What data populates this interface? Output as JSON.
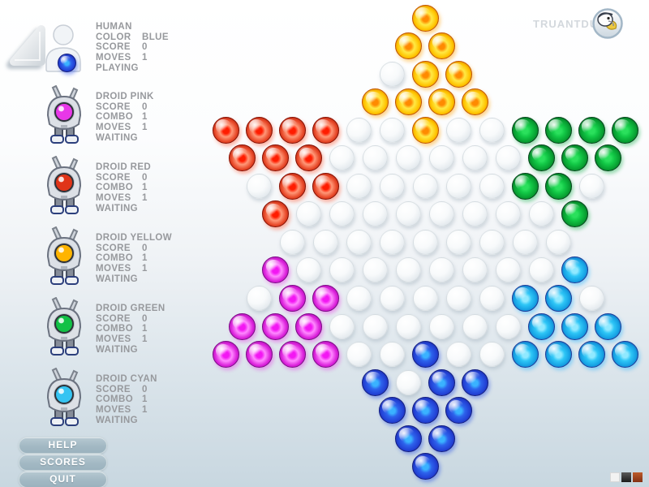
{
  "brand": {
    "name": "TRUANTDUCK",
    "logo_icon": "duck-logo",
    "text_color": "#d3d8dd"
  },
  "menu": [
    "HELP",
    "SCORES",
    "QUIT"
  ],
  "players": [
    {
      "id": "human",
      "name": "HUMAN",
      "icon": "person-icon",
      "color": "#2b62e8",
      "stats": [
        [
          "COLOR",
          "BLUE"
        ],
        [
          "SCORE",
          "0"
        ],
        [
          "MOVES",
          "1"
        ]
      ],
      "status": "PLAYING"
    },
    {
      "id": "droid-pink",
      "name": "DROID PINK",
      "icon": "robot-icon",
      "color": "#e838e8",
      "stats": [
        [
          "SCORE",
          "0"
        ],
        [
          "COMBO",
          "1"
        ],
        [
          "MOVES",
          "1"
        ]
      ],
      "status": "WAITING"
    },
    {
      "id": "droid-red",
      "name": "DROID RED",
      "icon": "robot-icon",
      "color": "#e03418",
      "stats": [
        [
          "SCORE",
          "0"
        ],
        [
          "COMBO",
          "1"
        ],
        [
          "MOVES",
          "1"
        ]
      ],
      "status": "WAITING"
    },
    {
      "id": "droid-yellow",
      "name": "DROID YELLOW",
      "icon": "robot-icon",
      "color": "#ffb400",
      "stats": [
        [
          "SCORE",
          "0"
        ],
        [
          "COMBO",
          "1"
        ],
        [
          "MOVES",
          "1"
        ]
      ],
      "status": "WAITING"
    },
    {
      "id": "droid-green",
      "name": "DROID GREEN",
      "icon": "robot-icon",
      "color": "#12c146",
      "stats": [
        [
          "SCORE",
          "0"
        ],
        [
          "COMBO",
          "1"
        ],
        [
          "MOVES",
          "1"
        ]
      ],
      "status": "WAITING"
    },
    {
      "id": "droid-cyan",
      "name": "DROID CYAN",
      "icon": "robot-icon",
      "color": "#36c4f2",
      "stats": [
        [
          "SCORE",
          "0"
        ],
        [
          "COMBO",
          "1"
        ],
        [
          "MOVES",
          "1"
        ]
      ],
      "status": "WAITING"
    }
  ],
  "board": {
    "game": "chinese-checkers",
    "rows": [
      "Y",
      "YY",
      ".YY",
      "YYYY",
      "RRRR..Y..GGGG",
      "RRR......GGG",
      ".RR.....GG.",
      "R........G",
      ".........",
      "M........C",
      ".MM.....CC.",
      "MMM......CCC",
      "MMMM..B..CCCC",
      "B.BB",
      "BBB",
      "BB",
      "B"
    ],
    "legend": {
      "Y": "yellow",
      "R": "red",
      "G": "green",
      "M": "magenta",
      "C": "cyan",
      "B": "blue",
      ".": "empty"
    },
    "colors": {
      "Y": {
        "center": "#ff8a00",
        "mid": "#ffe945",
        "rim": "#ffc400",
        "dark": "#c25400",
        "glow": "rgba(255,160,0,.45)"
      },
      "R": {
        "center": "#ff1c00",
        "mid": "#ff9878",
        "rim": "#e84828",
        "dark": "#860e00",
        "glow": "rgba(255,70,30,.4)"
      },
      "G": {
        "center": "#2ae05c",
        "mid": "#12c846",
        "rim": "#08a032",
        "dark": "#05441b",
        "glow": "rgba(0,170,60,.4)"
      },
      "M": {
        "center": "#f316f3",
        "mid": "#ff8aff",
        "rim": "#dc22dc",
        "dark": "#7c0a86",
        "glow": "rgba(230,50,230,.4)"
      },
      "C": {
        "center": "#90e9ff",
        "mid": "#2ec6f6",
        "rim": "#16a2e4",
        "dark": "#1b3a98",
        "glow": "rgba(40,180,255,.45)"
      },
      "B": {
        "center": "#3ab2ff",
        "mid": "#2d63ec",
        "rim": "#2342d6",
        "dark": "#131d80",
        "glow": "rgba(40,80,230,.45)"
      }
    }
  },
  "theme_swatches": [
    {
      "name": "light",
      "color": "#f2f2f2"
    },
    {
      "name": "dark",
      "color": "#2a2a2a"
    },
    {
      "name": "orange",
      "color": "#a64a22"
    }
  ],
  "icons": [
    "triangle-button",
    "person-icon",
    "robot-icon",
    "duck-logo"
  ]
}
